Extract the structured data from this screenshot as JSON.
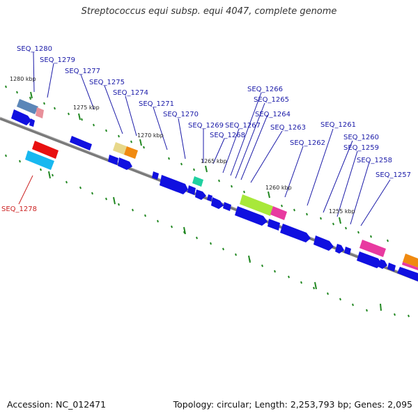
{
  "title": "Streptococcus equi subsp. equi 4047, complete genome",
  "footer": {
    "accession": "Accession: NC_012471",
    "summary": "Topology: circular; Length: 2,253,793 bp; Genes: 2,095"
  },
  "kbp_labels": [
    "1280 kbp",
    "1275 kbp",
    "1270 kbp",
    "1265 kbp",
    "1260 kbp",
    "1255 kbp"
  ],
  "gene_labels": [
    "SEQ_1280",
    "SEQ_1279",
    "SEQ_1277",
    "SEQ_1275",
    "SEQ_1274",
    "SEQ_1271",
    "SEQ_1270",
    "SEQ_1269",
    "SEQ_1268",
    "SEQ_1267",
    "SEQ_1266",
    "SEQ_1265",
    "SEQ_1264",
    "SEQ_1263",
    "SEQ_1262",
    "SEQ_1261",
    "SEQ_1260",
    "SEQ_1259",
    "SEQ_1258",
    "SEQ_1257",
    "SEQ_1278"
  ],
  "colors": {
    "backbone": "#7a7a7a",
    "forward_gene": "#1010e0",
    "label": "#1a1aa8",
    "highlight_label": "#cc2222",
    "tick": "#228822"
  }
}
